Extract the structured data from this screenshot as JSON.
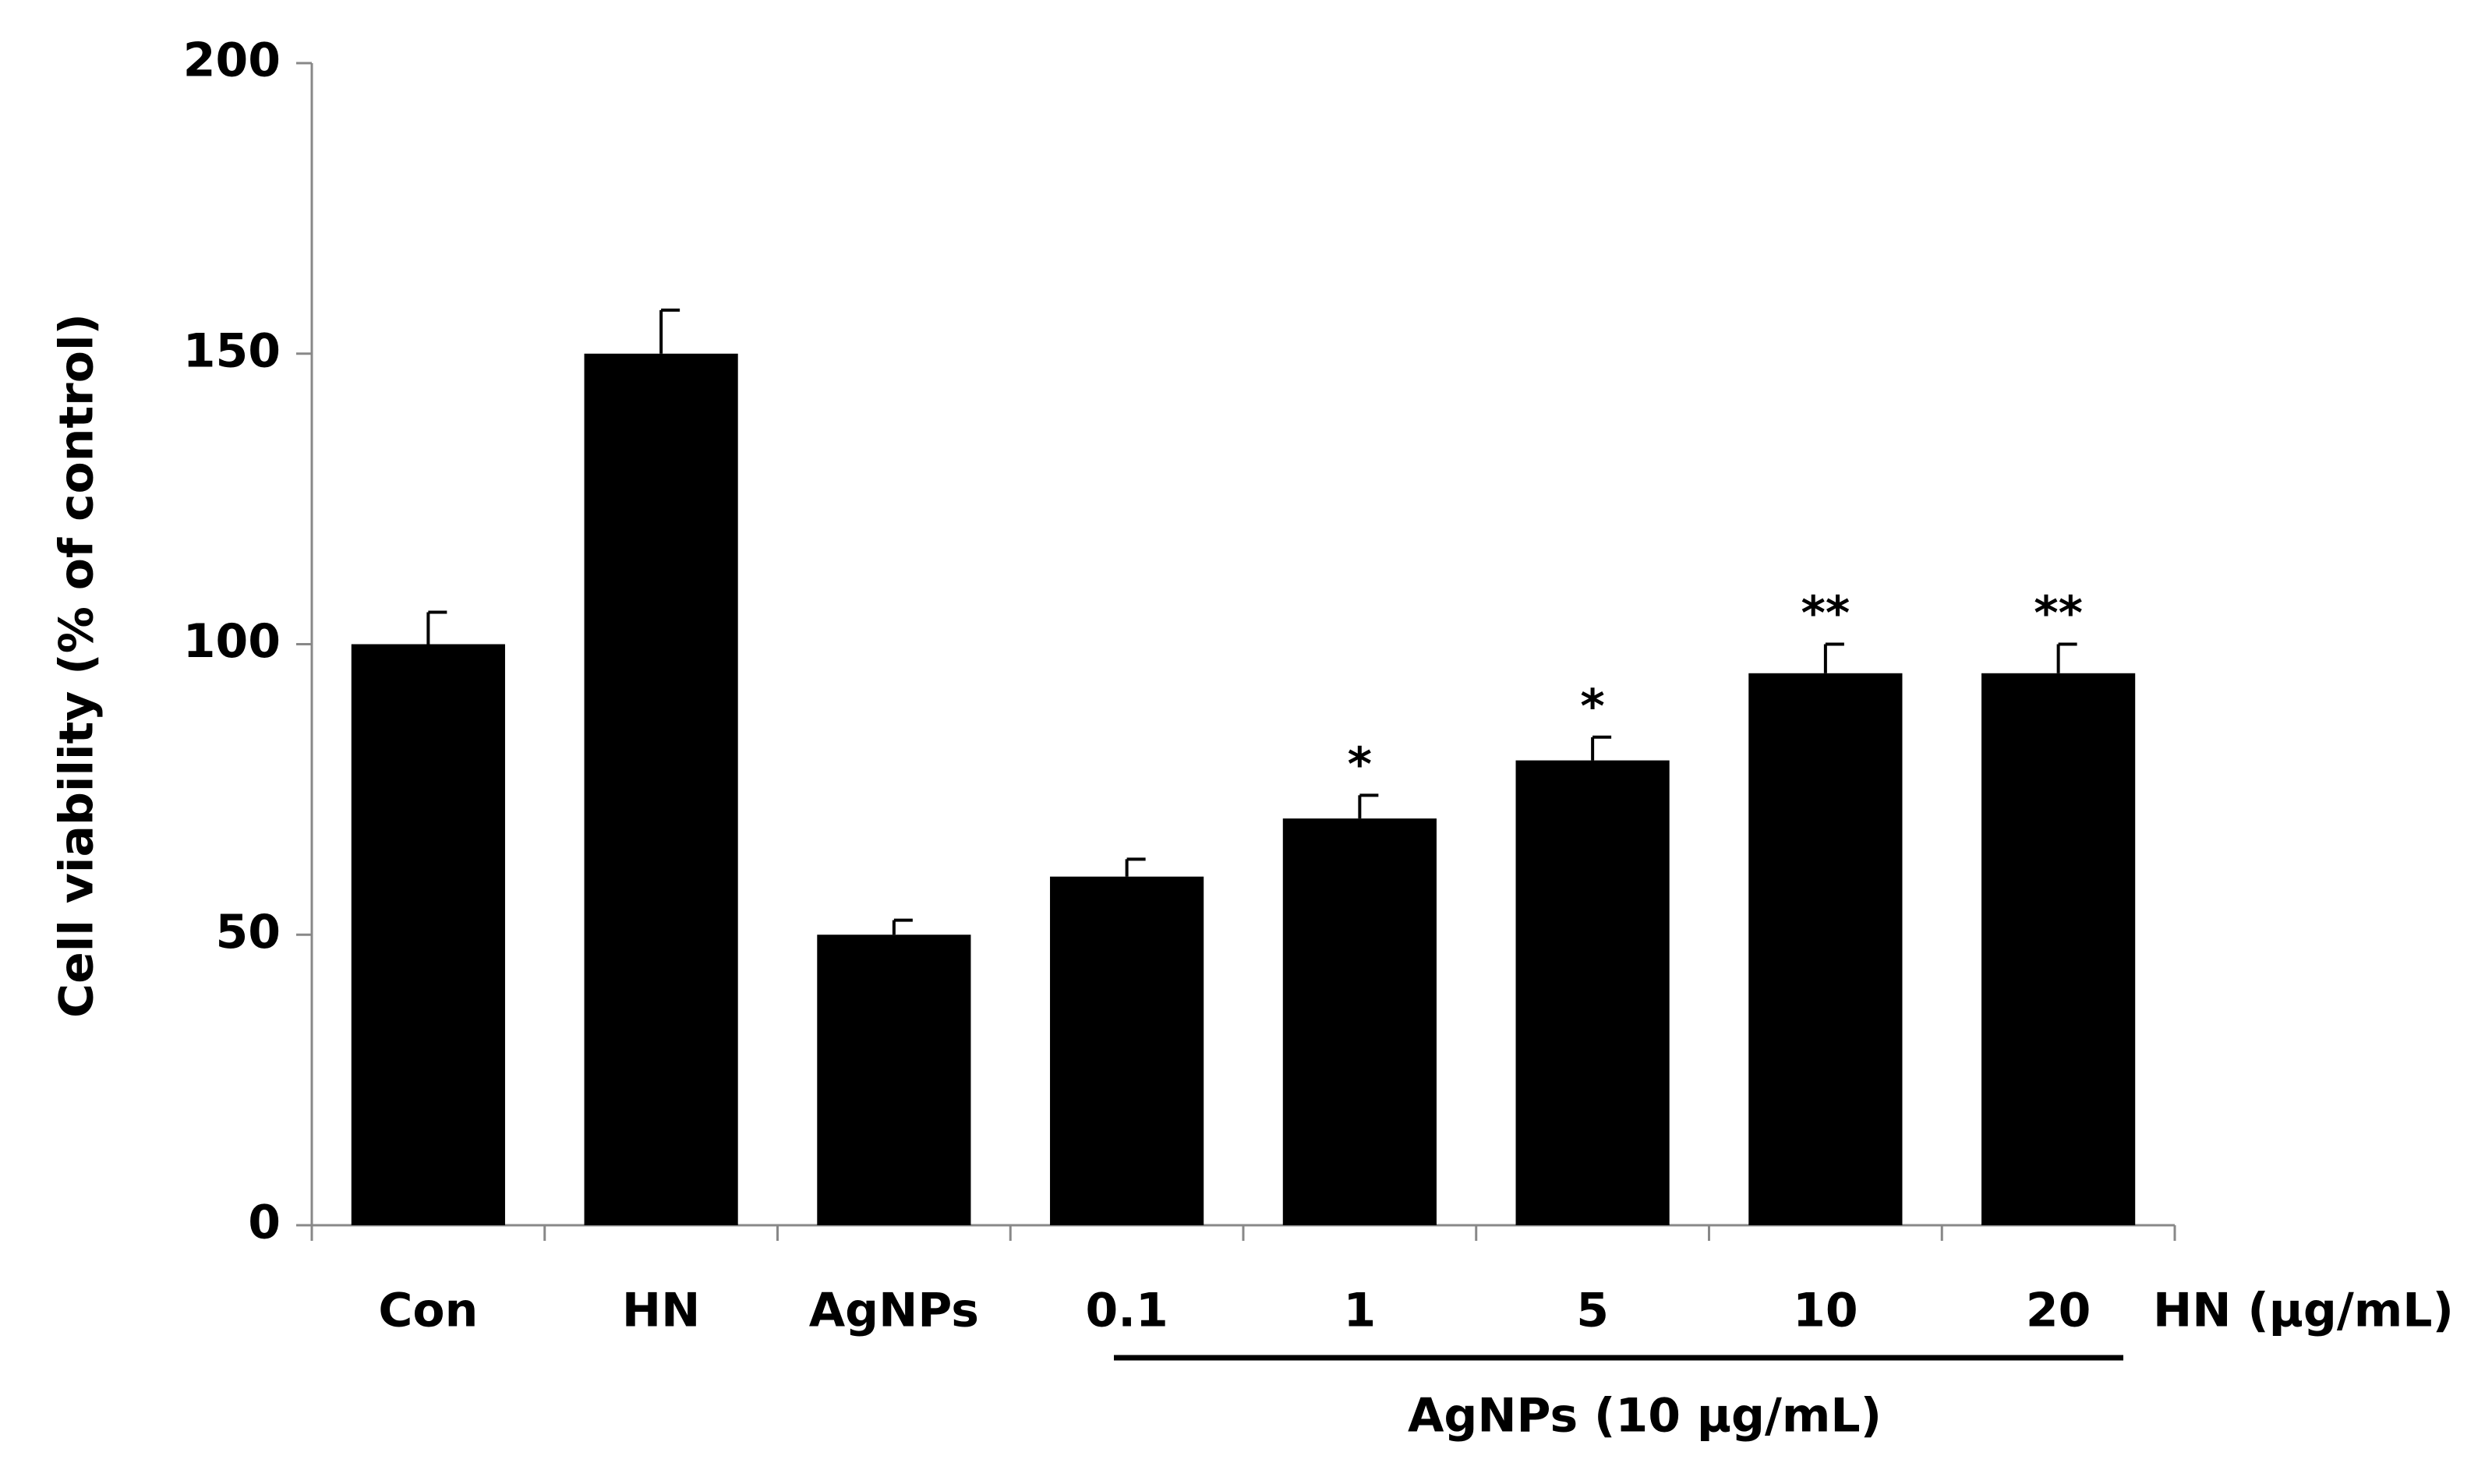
{
  "chart_data": {
    "type": "bar",
    "y_label": "Cell viability (% of control)",
    "x_unit_label": "HN (μg/mL)",
    "group_label": "AgNPs (10 μg/mL)",
    "categories": [
      "Con",
      "HN",
      "AgNPs",
      "0.1",
      "1",
      "5",
      "10",
      "20"
    ],
    "values": [
      100,
      150,
      50,
      60,
      70,
      80,
      95,
      95
    ],
    "errors": [
      5.5,
      7.5,
      2.5,
      3,
      4,
      4,
      5,
      5
    ],
    "significance": [
      null,
      null,
      null,
      null,
      "*",
      "*",
      "**",
      "**"
    ],
    "color": "#000000",
    "ylim": [
      0,
      200
    ],
    "yticks": [
      0,
      50,
      100,
      150,
      200
    ],
    "grid": false
  }
}
